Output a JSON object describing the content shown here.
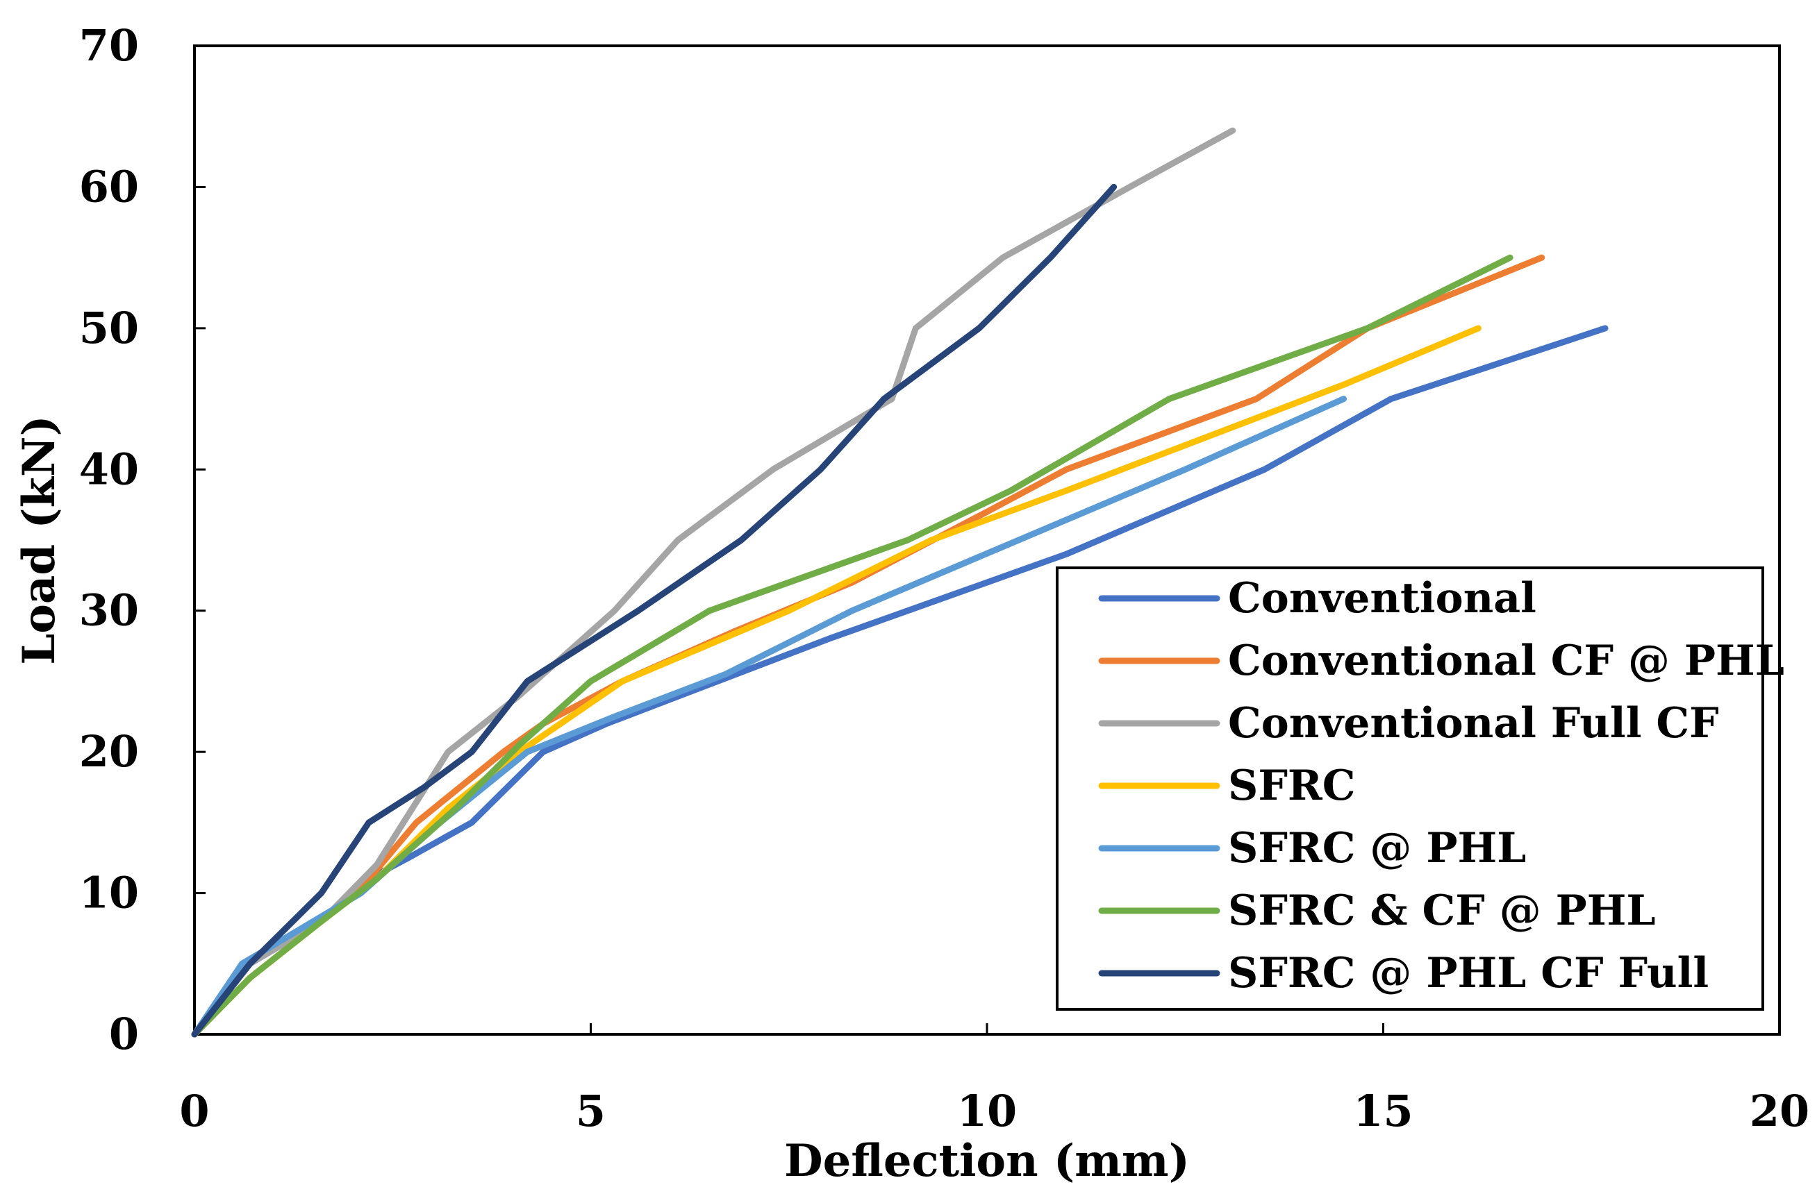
{
  "chart_data": {
    "type": "line",
    "title": "",
    "xlabel": "Deflection (mm)",
    "ylabel": "Load (kN)",
    "xlim": [
      0,
      20
    ],
    "ylim": [
      0,
      70
    ],
    "xticks": [
      0,
      5,
      10,
      15,
      20
    ],
    "yticks": [
      0,
      10,
      20,
      30,
      40,
      50,
      60,
      70
    ],
    "grid": false,
    "legend_position": "bottom-right",
    "series": [
      {
        "name": "Conventional",
        "color": "#4472C4",
        "points": [
          [
            0,
            0
          ],
          [
            0.7,
            5
          ],
          [
            1.6,
            8
          ],
          [
            2.2,
            11
          ],
          [
            2.7,
            12.5
          ],
          [
            3.5,
            15
          ],
          [
            4.4,
            20
          ],
          [
            5.2,
            22
          ],
          [
            6.6,
            25
          ],
          [
            8,
            28
          ],
          [
            9.5,
            31
          ],
          [
            11,
            34
          ],
          [
            13.5,
            40
          ],
          [
            15.1,
            45
          ],
          [
            17.8,
            50
          ]
        ]
      },
      {
        "name": "Conventional CF @ PHL",
        "color": "#ED7D31",
        "points": [
          [
            0,
            0
          ],
          [
            0.7,
            4
          ],
          [
            1.6,
            8
          ],
          [
            2.2,
            11
          ],
          [
            2.8,
            15
          ],
          [
            3.9,
            20
          ],
          [
            4.4,
            22
          ],
          [
            5.4,
            25
          ],
          [
            6.8,
            28.5
          ],
          [
            8.3,
            32
          ],
          [
            10,
            37
          ],
          [
            11,
            40
          ],
          [
            13.4,
            45
          ],
          [
            14.8,
            50
          ],
          [
            17,
            55
          ]
        ]
      },
      {
        "name": "Conventional Full CF",
        "color": "#A5A5A5",
        "points": [
          [
            0,
            0
          ],
          [
            0.7,
            5
          ],
          [
            1.6,
            8
          ],
          [
            2.3,
            12
          ],
          [
            3.2,
            20
          ],
          [
            4.1,
            24
          ],
          [
            5.3,
            30
          ],
          [
            6.1,
            35
          ],
          [
            7.3,
            40
          ],
          [
            8.8,
            45
          ],
          [
            9.1,
            50
          ],
          [
            10.2,
            55
          ],
          [
            11.8,
            60
          ],
          [
            13.1,
            64
          ]
        ]
      },
      {
        "name": "SFRC",
        "color": "#FFC000",
        "points": [
          [
            0,
            0
          ],
          [
            0.7,
            4
          ],
          [
            1.6,
            8
          ],
          [
            2.3,
            11
          ],
          [
            3.2,
            16
          ],
          [
            4.1,
            20
          ],
          [
            5.4,
            25
          ],
          [
            7.5,
            30
          ],
          [
            9.3,
            35
          ],
          [
            11,
            38.5
          ],
          [
            13.1,
            43
          ],
          [
            14.5,
            46
          ],
          [
            16.2,
            50
          ]
        ]
      },
      {
        "name": "SFRC @ PHL",
        "color": "#5B9BD5",
        "points": [
          [
            0,
            0
          ],
          [
            0.6,
            5
          ],
          [
            1.5,
            8
          ],
          [
            2.1,
            10
          ],
          [
            3.1,
            15
          ],
          [
            4.2,
            20
          ],
          [
            5.3,
            22.5
          ],
          [
            6.7,
            25.5
          ],
          [
            8.3,
            30
          ],
          [
            10.4,
            35
          ],
          [
            12.5,
            40
          ],
          [
            14.5,
            45
          ]
        ]
      },
      {
        "name": "SFRC & CF @ PHL",
        "color": "#70AD47",
        "points": [
          [
            0,
            0
          ],
          [
            0.7,
            4
          ],
          [
            1.6,
            8
          ],
          [
            2.3,
            11
          ],
          [
            3.3,
            16
          ],
          [
            4.1,
            20.5
          ],
          [
            5,
            25
          ],
          [
            6.5,
            30
          ],
          [
            9,
            35
          ],
          [
            10.3,
            38.5
          ],
          [
            12.3,
            45
          ],
          [
            14.8,
            50
          ],
          [
            16.6,
            55
          ]
        ]
      },
      {
        "name": "SFRC @ PHL CF Full",
        "color": "#264478",
        "points": [
          [
            0,
            0
          ],
          [
            0.7,
            5
          ],
          [
            1.6,
            10
          ],
          [
            2.2,
            15
          ],
          [
            2.9,
            17.5
          ],
          [
            3.5,
            20
          ],
          [
            4.2,
            25
          ],
          [
            5.6,
            30
          ],
          [
            6.9,
            35
          ],
          [
            7.9,
            40
          ],
          [
            8.7,
            45
          ],
          [
            9.9,
            50
          ],
          [
            10.8,
            55
          ],
          [
            11.6,
            60
          ]
        ]
      }
    ]
  }
}
